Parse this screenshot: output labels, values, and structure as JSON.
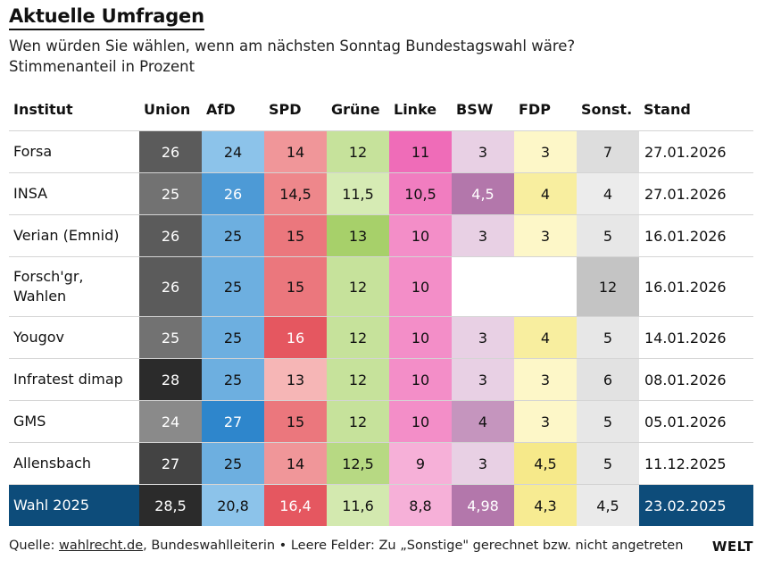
{
  "title": "Aktuelle Umfragen",
  "subtitle": "Wen würden Sie wählen, wenn am nächsten Sonntag Bundestagswahl wäre?",
  "subtitle2": "Stimmenanteil in Prozent",
  "footer": {
    "prefix": "Quelle: ",
    "link": "wahlrecht.de",
    "rest": ", Bundeswahlleiterin • Leere Felder: Zu „Sonstige\" gerechnet bzw. nicht angetreten"
  },
  "logo": "WELT",
  "chart_data": {
    "type": "table",
    "columns": [
      "Institut",
      "Union",
      "AfD",
      "SPD",
      "Grüne",
      "Linke",
      "BSW",
      "FDP",
      "Sonst.",
      "Stand"
    ],
    "rows": [
      {
        "institut": "Forsa",
        "values": [
          "26",
          "24",
          "14",
          "12",
          "11",
          "3",
          "3",
          "7"
        ],
        "stand": "27.01.2026"
      },
      {
        "institut": "INSA",
        "values": [
          "25",
          "26",
          "14,5",
          "11,5",
          "10,5",
          "4,5",
          "4",
          "4"
        ],
        "stand": "27.01.2026"
      },
      {
        "institut": "Verian (Emnid)",
        "values": [
          "26",
          "25",
          "15",
          "13",
          "10",
          "3",
          "3",
          "5"
        ],
        "stand": "16.01.2026"
      },
      {
        "institut": "Forsch'gr, Wahlen",
        "values": [
          "26",
          "25",
          "15",
          "12",
          "10",
          "",
          "",
          "12"
        ],
        "stand": "16.01.2026"
      },
      {
        "institut": "Yougov",
        "values": [
          "25",
          "25",
          "16",
          "12",
          "10",
          "3",
          "4",
          "5"
        ],
        "stand": "14.01.2026"
      },
      {
        "institut": "Infratest dimap",
        "values": [
          "28",
          "25",
          "13",
          "12",
          "10",
          "3",
          "3",
          "6"
        ],
        "stand": "08.01.2026"
      },
      {
        "institut": "GMS",
        "values": [
          "24",
          "27",
          "15",
          "12",
          "10",
          "4",
          "3",
          "5"
        ],
        "stand": "05.01.2026"
      },
      {
        "institut": "Allensbach",
        "values": [
          "27",
          "25",
          "14",
          "12,5",
          "9",
          "3",
          "4,5",
          "5"
        ],
        "stand": "11.12.2025"
      },
      {
        "institut": "Wahl 2025",
        "values": [
          "28,5",
          "20,8",
          "16,4",
          "11,6",
          "8,8",
          "4,98",
          "4,3",
          "4,5"
        ],
        "stand": "23.02.2025",
        "highlight": true
      }
    ],
    "colors": {
      "highlight_row": "#0d4c7a",
      "Union": {
        "light": "#8a8a8a",
        "dark": "#2b2b2b"
      },
      "AfD": {
        "light": "#8cc3ea",
        "dark": "#2e86cc"
      },
      "SPD": {
        "light": "#f6b6b6",
        "dark": "#e55760"
      },
      "Grüne": {
        "light": "#d6ebb4",
        "dark": "#a7d06a"
      },
      "Linke": {
        "light": "#f6b0d8",
        "dark": "#ef6cb8"
      },
      "BSW": {
        "light": "#e8d0e4",
        "dark": "#b377ab"
      },
      "FDP": {
        "light": "#fdf7c8",
        "dark": "#f6e98a"
      },
      "Sonst.": {
        "light": "#ececec",
        "dark": "#c4c4c4"
      }
    }
  }
}
